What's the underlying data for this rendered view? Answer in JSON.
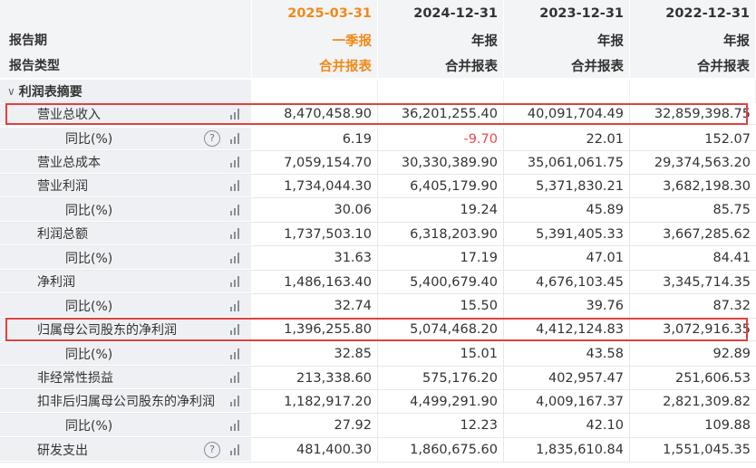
{
  "header": {
    "periods": [
      "2025-03-31",
      "2024-12-31",
      "2023-12-31",
      "2022-12-31"
    ],
    "report_period_label": "报告期",
    "report_periods": [
      "一季报",
      "年报",
      "年报",
      "年报"
    ],
    "report_type_label": "报告类型",
    "report_types": [
      "合并报表",
      "合并报表",
      "合并报表",
      "合并报表"
    ]
  },
  "section": {
    "title": "利润表摘要",
    "expand_icon": "chevron-down-icon"
  },
  "rows": [
    {
      "label": "营业总收入",
      "values": [
        "8,470,458.90",
        "36,201,255.40",
        "40,091,704.49",
        "32,859,398.75"
      ]
    },
    {
      "label": "同比(%)",
      "values": [
        "6.19",
        "-9.70",
        "22.01",
        "152.07"
      ]
    },
    {
      "label": "营业总成本",
      "values": [
        "7,059,154.70",
        "30,330,389.90",
        "35,061,061.75",
        "29,374,563.20"
      ]
    },
    {
      "label": "营业利润",
      "values": [
        "1,734,044.30",
        "6,405,179.90",
        "5,371,830.21",
        "3,682,198.30"
      ]
    },
    {
      "label": "同比(%)",
      "values": [
        "30.06",
        "19.24",
        "45.89",
        "85.75"
      ]
    },
    {
      "label": "利润总额",
      "values": [
        "1,737,503.10",
        "6,318,203.90",
        "5,391,405.33",
        "3,667,285.62"
      ]
    },
    {
      "label": "同比(%)",
      "values": [
        "31.63",
        "17.19",
        "47.01",
        "84.41"
      ]
    },
    {
      "label": "净利润",
      "values": [
        "1,486,163.40",
        "5,400,679.40",
        "4,676,103.45",
        "3,345,714.35"
      ]
    },
    {
      "label": "同比(%)",
      "values": [
        "32.74",
        "15.50",
        "39.76",
        "87.32"
      ]
    },
    {
      "label": "归属母公司股东的净利润",
      "values": [
        "1,396,255.80",
        "5,074,468.20",
        "4,412,124.83",
        "3,072,916.35"
      ]
    },
    {
      "label": "同比(%)",
      "values": [
        "32.85",
        "15.01",
        "43.58",
        "92.89"
      ]
    },
    {
      "label": "非经常性损益",
      "values": [
        "213,338.60",
        "575,176.20",
        "402,957.47",
        "251,606.53"
      ]
    },
    {
      "label": "扣非后归属母公司股东的净利润",
      "values": [
        "1,182,917.20",
        "4,499,291.90",
        "4,009,167.37",
        "2,821,309.82"
      ]
    },
    {
      "label": "同比(%)",
      "values": [
        "27.92",
        "12.23",
        "42.10",
        "109.88"
      ]
    },
    {
      "label": "研发支出",
      "values": [
        "481,400.30",
        "1,860,675.60",
        "1,835,610.84",
        "1,551,045.35"
      ]
    }
  ],
  "colors": {
    "current_period": "#f08a18",
    "negative": "#e8484c",
    "highlight_border": "#e0413f"
  },
  "icons": {
    "help": "help-circle-icon",
    "chart": "bar-chart-icon"
  }
}
